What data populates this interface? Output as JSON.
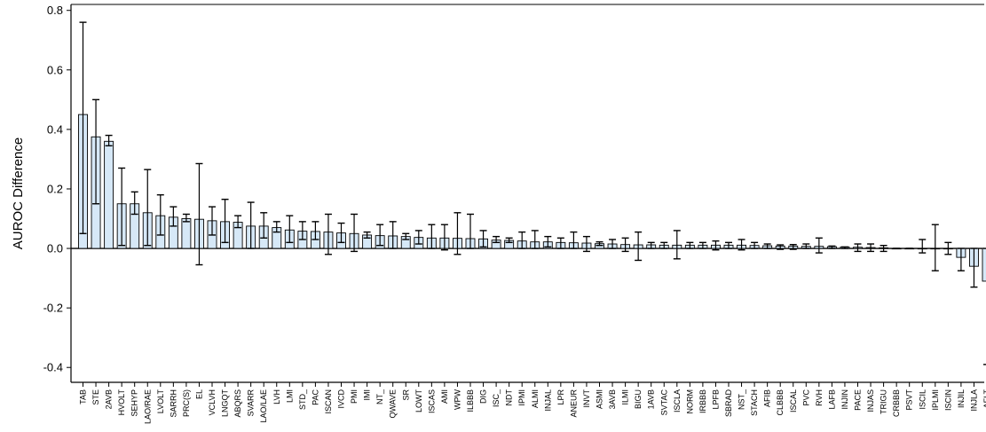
{
  "chart_data": {
    "type": "bar",
    "title": "",
    "xlabel": "",
    "ylabel": "AUROC Difference",
    "ylim": [
      -0.45,
      0.82
    ],
    "yticks": [
      "0.8",
      "0.6",
      "0.4",
      "0.2",
      "0.0",
      "-0.2",
      "-0.4"
    ],
    "grid": false,
    "bar_color": "#d6e8f7",
    "edge_color": "#000000",
    "categories": [
      "TAB",
      "STE",
      "2AVB",
      "HVOLT",
      "SEHYP",
      "LAO/RAE",
      "LVOLT",
      "SARRH",
      "PRC(S)",
      "EL",
      "VCLVH",
      "LNGQT",
      "ABQRS",
      "SVARR",
      "LAO/LAE",
      "LVH",
      "LMI",
      "STD_",
      "PAC",
      "ISCAN",
      "IVCD",
      "PMI",
      "IMI",
      "NT_",
      "QWAVE",
      "SR",
      "LOWT",
      "ISCAS",
      "AMI",
      "WPW",
      "ILBBB",
      "DIG",
      "ISC_",
      "NDT",
      "IPMI",
      "ALMI",
      "INJAL",
      "LPR",
      "ANEUR",
      "INVT",
      "ASMI",
      "3AVB",
      "ILMI",
      "BIGU",
      "1AVB",
      "SVTAC",
      "ISCLA",
      "NORM",
      "IRBBB",
      "LPFB",
      "SBRAD",
      "NST_",
      "STACH",
      "AFIB",
      "CLBBB",
      "ISCAL",
      "PVC",
      "RVH",
      "LAFB",
      "INJIN",
      "PACE",
      "INJAS",
      "TRIGU",
      "CRBBB",
      "PSVT",
      "ISCIL",
      "IPLMI",
      "ISCIN",
      "INJIL",
      "INJLA",
      "AFLT"
    ],
    "values": [
      0.45,
      0.375,
      0.36,
      0.15,
      0.15,
      0.12,
      0.11,
      0.105,
      0.1,
      0.098,
      0.093,
      0.09,
      0.088,
      0.075,
      0.075,
      0.07,
      0.062,
      0.058,
      0.057,
      0.055,
      0.052,
      0.05,
      0.045,
      0.043,
      0.042,
      0.04,
      0.037,
      0.035,
      0.035,
      0.034,
      0.033,
      0.032,
      0.028,
      0.027,
      0.025,
      0.022,
      0.022,
      0.02,
      0.019,
      0.018,
      0.016,
      0.015,
      0.013,
      0.012,
      0.012,
      0.011,
      0.011,
      0.011,
      0.011,
      0.011,
      0.011,
      0.011,
      0.01,
      0.009,
      0.008,
      0.008,
      0.007,
      0.007,
      0.006,
      0.005,
      0.004,
      0.003,
      0.002,
      0.0,
      0.0,
      0.0,
      0.0,
      0.0,
      -0.03,
      -0.06,
      -0.11
    ],
    "err_low": [
      0.05,
      0.15,
      0.345,
      0.01,
      0.115,
      0.01,
      0.045,
      0.075,
      0.09,
      -0.055,
      0.045,
      0.02,
      0.07,
      0.0,
      0.035,
      0.055,
      0.02,
      0.03,
      0.03,
      -0.02,
      0.02,
      -0.01,
      0.035,
      0.01,
      0.0,
      0.03,
      0.015,
      0.0,
      -0.005,
      -0.02,
      0.0,
      0.005,
      0.02,
      0.02,
      0.0,
      0.0,
      0.005,
      0.0,
      0.0,
      -0.01,
      0.01,
      0.0,
      -0.01,
      -0.04,
      0.0,
      0.0,
      -0.035,
      0.0,
      0.0,
      -0.005,
      0.0,
      -0.005,
      0.0,
      0.0,
      -0.003,
      -0.003,
      0.0,
      -0.015,
      0.0,
      0.0,
      -0.01,
      -0.01,
      -0.01,
      0.0,
      0.0,
      -0.015,
      -0.075,
      -0.02,
      -0.075,
      -0.13,
      -0.39
    ],
    "err_high": [
      0.76,
      0.5,
      0.38,
      0.27,
      0.19,
      0.265,
      0.18,
      0.14,
      0.115,
      0.285,
      0.14,
      0.165,
      0.11,
      0.155,
      0.12,
      0.09,
      0.11,
      0.09,
      0.09,
      0.115,
      0.085,
      0.115,
      0.055,
      0.08,
      0.09,
      0.05,
      0.06,
      0.08,
      0.08,
      0.12,
      0.115,
      0.06,
      0.04,
      0.035,
      0.055,
      0.06,
      0.04,
      0.035,
      0.055,
      0.04,
      0.022,
      0.03,
      0.035,
      0.055,
      0.02,
      0.02,
      0.06,
      0.02,
      0.02,
      0.025,
      0.02,
      0.03,
      0.02,
      0.015,
      0.012,
      0.013,
      0.015,
      0.035,
      0.008,
      0.005,
      0.015,
      0.015,
      0.01,
      0.0,
      0.0,
      0.03,
      0.08,
      0.02,
      0.0,
      0.0,
      0.0
    ]
  }
}
